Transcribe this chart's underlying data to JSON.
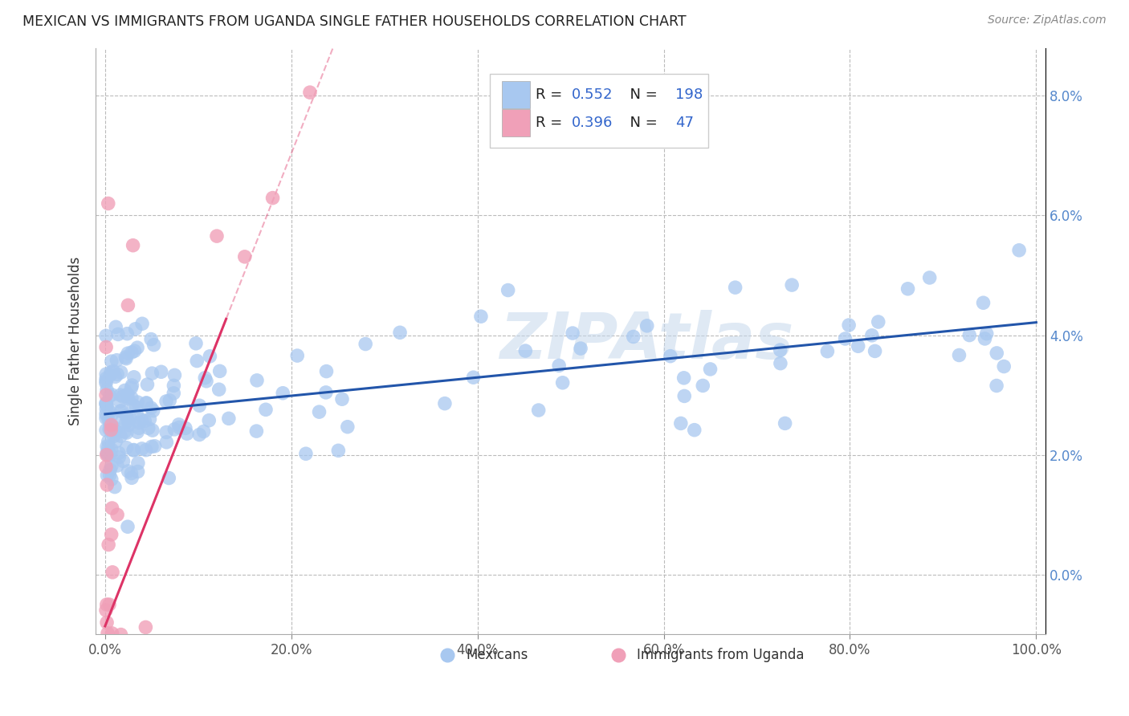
{
  "title": "MEXICAN VS IMMIGRANTS FROM UGANDA SINGLE FATHER HOUSEHOLDS CORRELATION CHART",
  "source": "Source: ZipAtlas.com",
  "ylabel": "Single Father Households",
  "xlabel": "",
  "background_color": "#ffffff",
  "watermark": "ZIPAtlas",
  "blue_color": "#a8c8f0",
  "pink_color": "#f0a0b8",
  "blue_line_color": "#2255aa",
  "pink_line_color": "#dd3366",
  "R_blue": 0.552,
  "N_blue": 198,
  "R_pink": 0.396,
  "N_pink": 47,
  "xlim": [
    -0.01,
    1.01
  ],
  "ylim": [
    -0.01,
    0.088
  ],
  "yticks": [
    0.0,
    0.02,
    0.04,
    0.06,
    0.08
  ],
  "yticklabels": [
    "0.0%",
    "2.0%",
    "4.0%",
    "6.0%",
    "8.0%"
  ],
  "xticks": [
    0.0,
    0.2,
    0.4,
    0.6,
    0.8,
    1.0
  ],
  "xticklabels": [
    "0.0%",
    "20.0%",
    "40.0%",
    "60.0%",
    "80.0%",
    "100.0%"
  ]
}
